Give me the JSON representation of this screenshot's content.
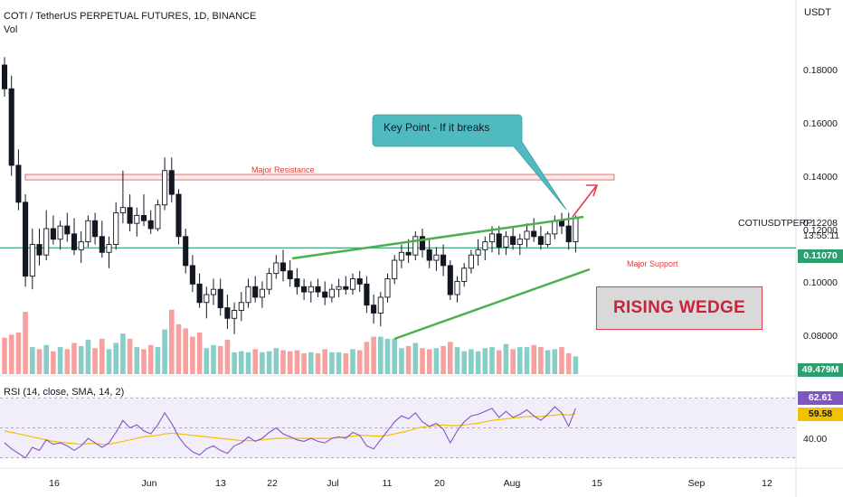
{
  "header": {
    "title": "COTI / TetherUS PERPETUAL FUTURES, 1D, BINANCE",
    "volume_label": "Vol"
  },
  "axis": {
    "unit": "USDT",
    "y_ticks": [
      "0.18000",
      "0.16000",
      "0.14000",
      "0.12000",
      "0.10000",
      "0.08000"
    ],
    "x_ticks": [
      "16",
      "Jun",
      "13",
      "22",
      "Jul",
      "11",
      "20",
      "Aug",
      "15",
      "Sep",
      "12"
    ]
  },
  "price_panel": {
    "symbol": "COTIUSDTPERP",
    "last_price": "0.12208",
    "countdown": "13:55:11",
    "support_price": "0.11070",
    "volume_value": "49.479M"
  },
  "annotations": {
    "callout": "Key Point - If it breaks",
    "resistance": "Major Resistance",
    "support": "Major Support",
    "pattern": "RISING WEDGE"
  },
  "rsi": {
    "label": "RSI (14, close, SMA, 14, 2)",
    "rsi_value": "62.61",
    "sma_value": "59.58",
    "axis_tick": "40.00"
  },
  "colors": {
    "up": "#26a69a",
    "down": "#ef5350",
    "resistance": "#e57373",
    "support": "#2e9e6e",
    "wedge": "#4caf50",
    "callout": "#4fbac0",
    "rsi_line": "#7e57c2",
    "rsi_sma": "#f2c200",
    "badge_price": "#2e9e6e",
    "badge_volume": "#2e9e6e",
    "badge_rsi": "#7e57c2",
    "badge_sma": "#f2c200"
  },
  "chart_data": {
    "type": "candlestick",
    "ylim": [
      0.068,
      0.205
    ],
    "resistance_level": 0.1375,
    "support_level": 0.1107,
    "candles": [
      {
        "o": 0.18,
        "h": 0.183,
        "l": 0.168,
        "c": 0.171
      },
      {
        "o": 0.171,
        "h": 0.176,
        "l": 0.138,
        "c": 0.142
      },
      {
        "o": 0.142,
        "h": 0.148,
        "l": 0.125,
        "c": 0.128
      },
      {
        "o": 0.128,
        "h": 0.131,
        "l": 0.096,
        "c": 0.1
      },
      {
        "o": 0.1,
        "h": 0.118,
        "l": 0.095,
        "c": 0.112
      },
      {
        "o": 0.112,
        "h": 0.118,
        "l": 0.104,
        "c": 0.108
      },
      {
        "o": 0.108,
        "h": 0.125,
        "l": 0.106,
        "c": 0.118
      },
      {
        "o": 0.118,
        "h": 0.123,
        "l": 0.112,
        "c": 0.114
      },
      {
        "o": 0.114,
        "h": 0.121,
        "l": 0.11,
        "c": 0.119
      },
      {
        "o": 0.119,
        "h": 0.124,
        "l": 0.113,
        "c": 0.116
      },
      {
        "o": 0.116,
        "h": 0.122,
        "l": 0.108,
        "c": 0.11
      },
      {
        "o": 0.11,
        "h": 0.117,
        "l": 0.105,
        "c": 0.113
      },
      {
        "o": 0.113,
        "h": 0.123,
        "l": 0.111,
        "c": 0.121
      },
      {
        "o": 0.121,
        "h": 0.124,
        "l": 0.112,
        "c": 0.115
      },
      {
        "o": 0.115,
        "h": 0.121,
        "l": 0.107,
        "c": 0.109
      },
      {
        "o": 0.109,
        "h": 0.115,
        "l": 0.103,
        "c": 0.112
      },
      {
        "o": 0.112,
        "h": 0.128,
        "l": 0.11,
        "c": 0.124
      },
      {
        "o": 0.124,
        "h": 0.14,
        "l": 0.12,
        "c": 0.126
      },
      {
        "o": 0.126,
        "h": 0.131,
        "l": 0.117,
        "c": 0.12
      },
      {
        "o": 0.12,
        "h": 0.126,
        "l": 0.115,
        "c": 0.123
      },
      {
        "o": 0.123,
        "h": 0.131,
        "l": 0.119,
        "c": 0.121
      },
      {
        "o": 0.121,
        "h": 0.125,
        "l": 0.116,
        "c": 0.118
      },
      {
        "o": 0.118,
        "h": 0.129,
        "l": 0.117,
        "c": 0.127
      },
      {
        "o": 0.127,
        "h": 0.145,
        "l": 0.125,
        "c": 0.14
      },
      {
        "o": 0.14,
        "h": 0.145,
        "l": 0.128,
        "c": 0.131
      },
      {
        "o": 0.131,
        "h": 0.133,
        "l": 0.112,
        "c": 0.115
      },
      {
        "o": 0.115,
        "h": 0.118,
        "l": 0.101,
        "c": 0.104
      },
      {
        "o": 0.104,
        "h": 0.108,
        "l": 0.094,
        "c": 0.097
      },
      {
        "o": 0.097,
        "h": 0.101,
        "l": 0.088,
        "c": 0.09
      },
      {
        "o": 0.09,
        "h": 0.096,
        "l": 0.084,
        "c": 0.093
      },
      {
        "o": 0.093,
        "h": 0.099,
        "l": 0.089,
        "c": 0.095
      },
      {
        "o": 0.095,
        "h": 0.099,
        "l": 0.085,
        "c": 0.088
      },
      {
        "o": 0.088,
        "h": 0.093,
        "l": 0.08,
        "c": 0.084
      },
      {
        "o": 0.084,
        "h": 0.09,
        "l": 0.078,
        "c": 0.087
      },
      {
        "o": 0.087,
        "h": 0.094,
        "l": 0.083,
        "c": 0.09
      },
      {
        "o": 0.09,
        "h": 0.099,
        "l": 0.088,
        "c": 0.096
      },
      {
        "o": 0.096,
        "h": 0.1,
        "l": 0.09,
        "c": 0.092
      },
      {
        "o": 0.092,
        "h": 0.098,
        "l": 0.088,
        "c": 0.095
      },
      {
        "o": 0.095,
        "h": 0.103,
        "l": 0.093,
        "c": 0.101
      },
      {
        "o": 0.101,
        "h": 0.108,
        "l": 0.099,
        "c": 0.105
      },
      {
        "o": 0.105,
        "h": 0.11,
        "l": 0.098,
        "c": 0.102
      },
      {
        "o": 0.102,
        "h": 0.106,
        "l": 0.096,
        "c": 0.099
      },
      {
        "o": 0.099,
        "h": 0.103,
        "l": 0.093,
        "c": 0.096
      },
      {
        "o": 0.096,
        "h": 0.099,
        "l": 0.091,
        "c": 0.094
      },
      {
        "o": 0.094,
        "h": 0.098,
        "l": 0.09,
        "c": 0.096
      },
      {
        "o": 0.096,
        "h": 0.099,
        "l": 0.092,
        "c": 0.094
      },
      {
        "o": 0.094,
        "h": 0.098,
        "l": 0.089,
        "c": 0.092
      },
      {
        "o": 0.092,
        "h": 0.097,
        "l": 0.09,
        "c": 0.095
      },
      {
        "o": 0.095,
        "h": 0.099,
        "l": 0.092,
        "c": 0.096
      },
      {
        "o": 0.096,
        "h": 0.1,
        "l": 0.093,
        "c": 0.095
      },
      {
        "o": 0.095,
        "h": 0.101,
        "l": 0.093,
        "c": 0.099
      },
      {
        "o": 0.099,
        "h": 0.102,
        "l": 0.094,
        "c": 0.097
      },
      {
        "o": 0.097,
        "h": 0.1,
        "l": 0.086,
        "c": 0.089
      },
      {
        "o": 0.089,
        "h": 0.093,
        "l": 0.082,
        "c": 0.086
      },
      {
        "o": 0.086,
        "h": 0.094,
        "l": 0.081,
        "c": 0.092
      },
      {
        "o": 0.092,
        "h": 0.101,
        "l": 0.09,
        "c": 0.099
      },
      {
        "o": 0.099,
        "h": 0.108,
        "l": 0.097,
        "c": 0.106
      },
      {
        "o": 0.106,
        "h": 0.112,
        "l": 0.103,
        "c": 0.109
      },
      {
        "o": 0.109,
        "h": 0.114,
        "l": 0.105,
        "c": 0.108
      },
      {
        "o": 0.108,
        "h": 0.117,
        "l": 0.106,
        "c": 0.115
      },
      {
        "o": 0.115,
        "h": 0.118,
        "l": 0.107,
        "c": 0.11
      },
      {
        "o": 0.11,
        "h": 0.114,
        "l": 0.103,
        "c": 0.106
      },
      {
        "o": 0.106,
        "h": 0.111,
        "l": 0.102,
        "c": 0.108
      },
      {
        "o": 0.108,
        "h": 0.112,
        "l": 0.1,
        "c": 0.104
      },
      {
        "o": 0.104,
        "h": 0.106,
        "l": 0.091,
        "c": 0.093
      },
      {
        "o": 0.093,
        "h": 0.1,
        "l": 0.09,
        "c": 0.098
      },
      {
        "o": 0.098,
        "h": 0.105,
        "l": 0.096,
        "c": 0.103
      },
      {
        "o": 0.103,
        "h": 0.11,
        "l": 0.101,
        "c": 0.108
      },
      {
        "o": 0.108,
        "h": 0.114,
        "l": 0.104,
        "c": 0.11
      },
      {
        "o": 0.11,
        "h": 0.115,
        "l": 0.106,
        "c": 0.113
      },
      {
        "o": 0.113,
        "h": 0.119,
        "l": 0.109,
        "c": 0.116
      },
      {
        "o": 0.116,
        "h": 0.119,
        "l": 0.108,
        "c": 0.111
      },
      {
        "o": 0.111,
        "h": 0.117,
        "l": 0.108,
        "c": 0.115
      },
      {
        "o": 0.115,
        "h": 0.119,
        "l": 0.11,
        "c": 0.112
      },
      {
        "o": 0.112,
        "h": 0.116,
        "l": 0.108,
        "c": 0.114
      },
      {
        "o": 0.114,
        "h": 0.12,
        "l": 0.111,
        "c": 0.117
      },
      {
        "o": 0.117,
        "h": 0.122,
        "l": 0.113,
        "c": 0.115
      },
      {
        "o": 0.115,
        "h": 0.119,
        "l": 0.11,
        "c": 0.112
      },
      {
        "o": 0.112,
        "h": 0.117,
        "l": 0.111,
        "c": 0.116
      },
      {
        "o": 0.116,
        "h": 0.123,
        "l": 0.114,
        "c": 0.121
      },
      {
        "o": 0.121,
        "h": 0.124,
        "l": 0.116,
        "c": 0.119
      },
      {
        "o": 0.119,
        "h": 0.124,
        "l": 0.11,
        "c": 0.113
      },
      {
        "o": 0.113,
        "h": 0.123,
        "l": 0.109,
        "c": 0.122
      }
    ],
    "volume": [
      3.5,
      3.8,
      4.0,
      6.0,
      2.6,
      2.4,
      2.8,
      2.2,
      2.6,
      2.4,
      3.0,
      2.7,
      3.3,
      2.5,
      3.4,
      2.4,
      3.0,
      3.9,
      3.4,
      2.6,
      2.4,
      2.8,
      2.6,
      4.3,
      6.2,
      4.8,
      4.4,
      3.6,
      4.0,
      2.5,
      2.8,
      2.7,
      3.3,
      2.1,
      2.2,
      2.1,
      2.4,
      2.1,
      2.2,
      2.5,
      2.3,
      2.2,
      2.3,
      2.0,
      2.1,
      2.0,
      2.4,
      2.1,
      2.1,
      2.0,
      2.4,
      2.3,
      3.1,
      3.6,
      3.6,
      3.4,
      3.4,
      2.5,
      2.7,
      3.0,
      2.5,
      2.4,
      2.5,
      2.7,
      3.1,
      2.6,
      2.2,
      2.4,
      2.2,
      2.5,
      2.6,
      2.3,
      2.9,
      2.4,
      2.6,
      2.6,
      2.8,
      2.6,
      2.3,
      2.4,
      2.6,
      2.0,
      1.7
    ],
    "rsi": [
      40,
      36,
      33,
      30,
      37,
      35,
      42,
      39,
      40,
      38,
      35,
      38,
      43,
      40,
      37,
      40,
      47,
      55,
      50,
      52,
      48,
      46,
      52,
      60,
      53,
      44,
      38,
      34,
      32,
      36,
      38,
      35,
      33,
      38,
      40,
      44,
      41,
      43,
      47,
      50,
      46,
      44,
      42,
      41,
      43,
      41,
      40,
      43,
      44,
      43,
      47,
      45,
      38,
      36,
      42,
      48,
      54,
      58,
      56,
      60,
      54,
      51,
      53,
      49,
      40,
      48,
      54,
      58,
      59,
      61,
      63,
      57,
      61,
      57,
      59,
      62,
      58,
      55,
      59,
      64,
      60,
      51,
      63
    ],
    "rsi_sma": [
      48,
      47,
      46,
      45,
      44,
      43,
      42,
      41,
      40.5,
      40,
      39.5,
      39,
      39.5,
      39.5,
      39,
      39,
      40,
      41,
      42,
      43,
      44,
      44.5,
      45,
      46,
      46.5,
      46,
      45.5,
      45,
      44.5,
      44,
      43.5,
      43,
      42.5,
      42,
      41.5,
      41.5,
      41.5,
      42,
      42.5,
      43,
      43,
      43,
      43,
      43,
      43,
      43,
      43,
      43,
      43.5,
      44,
      44.5,
      45,
      45,
      44.5,
      44.5,
      45,
      46,
      47,
      48,
      49.5,
      50.5,
      51,
      51.5,
      52,
      51.5,
      51.5,
      52,
      52.5,
      53,
      54,
      55,
      55.5,
      56,
      56.5,
      57,
      57.5,
      57.5,
      57.5,
      58,
      58.5,
      59,
      58.5,
      59.6
    ],
    "rsi_ylim": [
      28,
      78
    ]
  }
}
